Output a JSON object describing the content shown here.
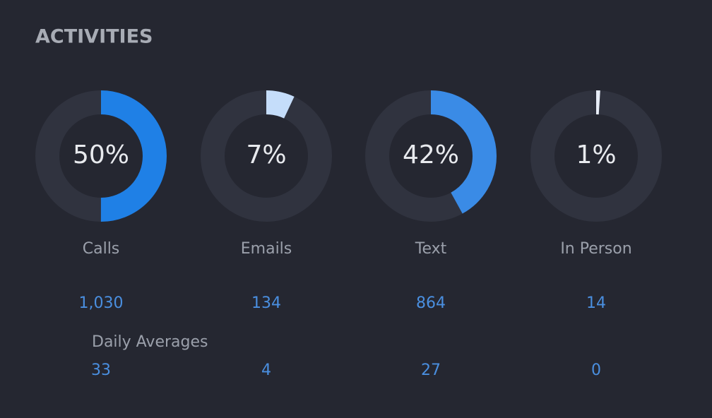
{
  "title": "ACTIVITIES",
  "activities": [
    {
      "label": "Calls",
      "percent": 50,
      "percent_label": "50%",
      "count": 1030,
      "count_label": "1,030",
      "daily_average": 33,
      "color": "#1f80e6"
    },
    {
      "label": "Emails",
      "percent": 7,
      "percent_label": "7%",
      "count": 134,
      "daily_average": 4,
      "color": "#c5ddfa"
    },
    {
      "label": "Text",
      "percent": 42,
      "percent_label": "42%",
      "count": 864,
      "daily_average": 27,
      "color": "#3a8be6"
    },
    {
      "label": "In Person",
      "percent": 1,
      "percent_label": "1%",
      "count": 14,
      "daily_average": 0,
      "color": "#e8eef8"
    }
  ],
  "daily_averages_label": "Daily Averages"
}
